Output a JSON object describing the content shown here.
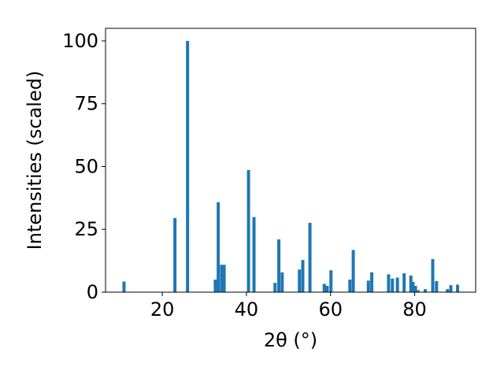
{
  "chart_data": {
    "type": "bar",
    "title": "",
    "xlabel": "2θ (°)",
    "ylabel": "Intensities (scaled)",
    "xlim": [
      6.5,
      94.5
    ],
    "ylim": [
      0,
      105
    ],
    "xticks": [
      20,
      40,
      60,
      80
    ],
    "yticks": [
      0,
      25,
      50,
      75,
      100
    ],
    "grid": false,
    "bar_color": "#1f77b4",
    "series": [
      {
        "x": [
          10.9,
          23.0,
          26.0,
          32.6,
          33.3,
          34.1,
          34.7,
          40.5,
          41.8,
          46.8,
          47.7,
          48.5,
          52.6,
          53.4,
          55.1,
          58.5,
          59.2,
          60.1,
          64.6,
          65.4,
          69.0,
          69.8,
          73.8,
          74.7,
          75.9,
          77.5,
          79.1,
          79.6,
          80.2,
          80.8,
          82.5,
          84.3,
          85.2,
          87.8,
          88.6,
          90.2
        ],
        "y": [
          4.2,
          29.5,
          100.0,
          5.0,
          35.8,
          10.9,
          10.9,
          48.6,
          29.9,
          3.7,
          21.0,
          7.9,
          9.0,
          12.8,
          27.6,
          3.3,
          2.5,
          8.7,
          5.0,
          16.8,
          4.6,
          7.9,
          7.1,
          5.4,
          5.8,
          7.5,
          6.6,
          4.1,
          2.5,
          0.8,
          1.2,
          13.2,
          4.4,
          1.2,
          2.8,
          3.0
        ]
      }
    ]
  }
}
